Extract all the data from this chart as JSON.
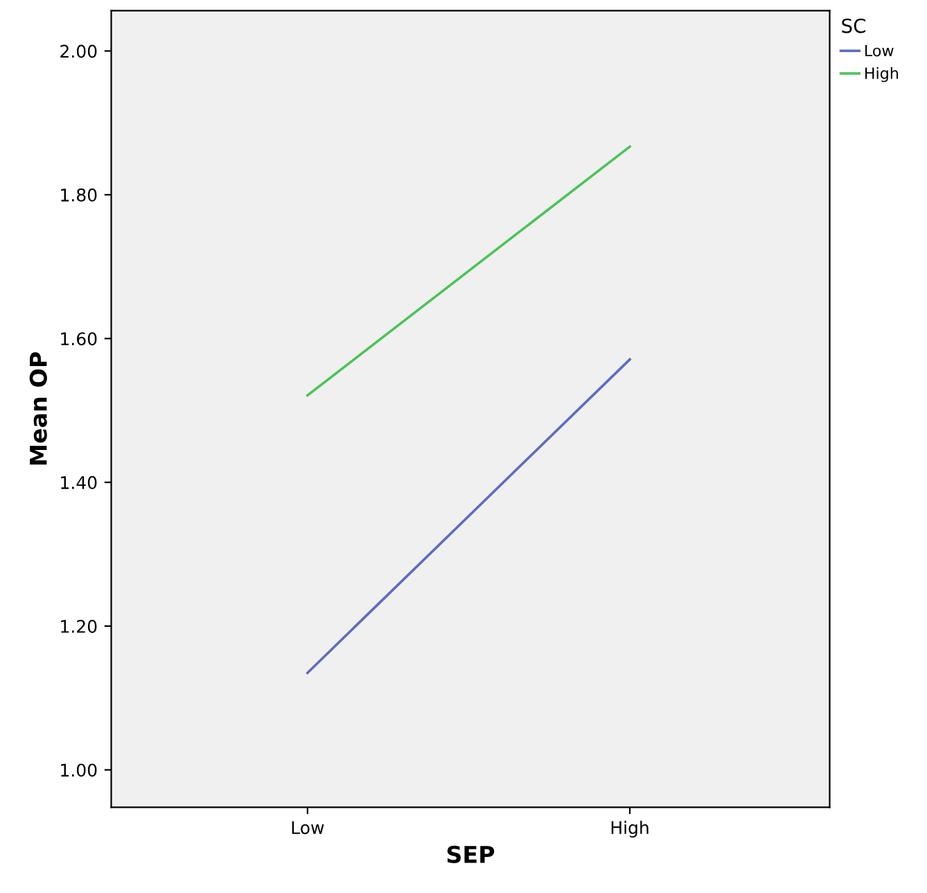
{
  "chart_data": {
    "type": "line",
    "xlabel": "SEP",
    "ylabel": "Mean OP",
    "legend_title": "SC",
    "legend": "top right",
    "categories": [
      "Low",
      "High"
    ],
    "series": [
      {
        "name": "Low",
        "color": "#5b6bc4",
        "values": [
          1.135,
          1.571
        ]
      },
      {
        "name": "High",
        "color": "#4cc35a",
        "values": [
          1.521,
          1.867
        ]
      }
    ],
    "ylim": [
      0.948,
      2.056
    ],
    "yticks": [
      {
        "value": 1.0,
        "label": "1.00"
      },
      {
        "value": 1.2,
        "label": "1.20"
      },
      {
        "value": 1.4,
        "label": "1.40"
      },
      {
        "value": 1.6,
        "label": "1.60"
      },
      {
        "value": 1.8,
        "label": "1.80"
      },
      {
        "value": 2.0,
        "label": "2.00"
      }
    ],
    "grid": false,
    "marker": "none",
    "line_style": "solid"
  }
}
